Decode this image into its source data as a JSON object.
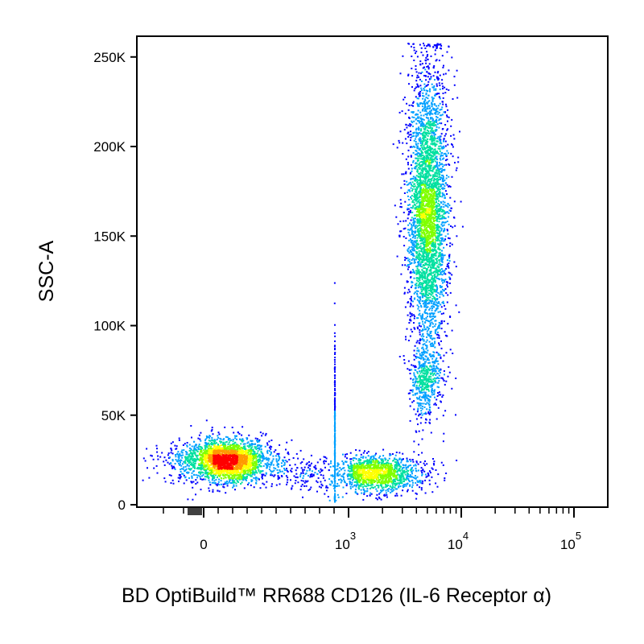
{
  "chart_data": {
    "type": "scatter",
    "style": "pseudocolor density dot plot",
    "title": "",
    "xlabel": "BD OptiBuild™ RR688 CD126 (IL-6 Receptor α)",
    "ylabel": "SSC-A",
    "x_scale": "biexponential",
    "y_scale": "linear",
    "ylim": [
      0,
      262144
    ],
    "y_ticks": [
      {
        "value": 0,
        "label": "0"
      },
      {
        "value": 50000,
        "label": "50K"
      },
      {
        "value": 100000,
        "label": "100K"
      },
      {
        "value": 150000,
        "label": "150K"
      },
      {
        "value": 200000,
        "label": "200K"
      },
      {
        "value": 250000,
        "label": "250K"
      }
    ],
    "x_ticks": [
      {
        "value": 0,
        "label": "0",
        "exp": ""
      },
      {
        "value": 1000,
        "label": "10",
        "exp": "3"
      },
      {
        "value": 10000,
        "label": "10",
        "exp": "4"
      },
      {
        "value": 100000,
        "label": "10",
        "exp": "5"
      }
    ],
    "density_colors": [
      "#0000ff",
      "#00a0ff",
      "#00e0a0",
      "#80ff00",
      "#ffff00",
      "#ff9900",
      "#ff0000"
    ],
    "populations": [
      {
        "x_center": 150,
        "x_spread": 150,
        "y_center": 25000,
        "y_spread": 6000,
        "points": 2600
      },
      {
        "x_center": 1600,
        "x_spread": 0.22,
        "y_center": 18000,
        "y_spread": 5000,
        "points": 1500
      },
      {
        "x_center": 5000,
        "x_spread": 0.09,
        "y_center": 165000,
        "y_spread": 40000,
        "points": 3600
      },
      {
        "x_center": 4700,
        "x_spread": 0.07,
        "y_center": 70000,
        "y_spread": 10000,
        "points": 450
      },
      {
        "x_center": 900,
        "x_spread": 0.45,
        "y_center": 40000,
        "y_spread": 30000,
        "points": 250
      }
    ]
  }
}
